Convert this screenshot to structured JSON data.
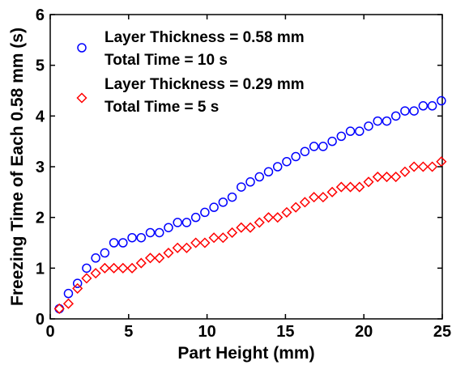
{
  "chart_data": {
    "type": "scatter",
    "title": "",
    "xlabel": "Part Height (mm)",
    "ylabel": "Freezing Time of Each 0.58 mm (s)",
    "xlim": [
      0,
      25
    ],
    "ylim": [
      0,
      6
    ],
    "xticks": [
      "0",
      "5",
      "10",
      "15",
      "20",
      "25"
    ],
    "yticks": [
      "0",
      "1",
      "2",
      "3",
      "4",
      "5",
      "6"
    ],
    "grid": false,
    "legend_position": "top-left",
    "series": [
      {
        "name": "Layer Thickness = 0.58 mm",
        "name2": "Total Time = 10 s",
        "marker": "circle",
        "color": "#0000ff",
        "x": [
          0.58,
          1.16,
          1.74,
          2.32,
          2.9,
          3.48,
          4.06,
          4.64,
          5.22,
          5.8,
          6.38,
          6.96,
          7.54,
          8.12,
          8.7,
          9.28,
          9.86,
          10.44,
          11.02,
          11.6,
          12.18,
          12.76,
          13.34,
          13.92,
          14.5,
          15.08,
          15.66,
          16.24,
          16.82,
          17.4,
          17.98,
          18.56,
          19.14,
          19.72,
          20.3,
          20.88,
          21.46,
          22.04,
          22.62,
          23.2,
          23.78,
          24.36,
          24.94
        ],
        "y": [
          0.2,
          0.5,
          0.7,
          1.0,
          1.2,
          1.3,
          1.5,
          1.5,
          1.6,
          1.6,
          1.7,
          1.7,
          1.8,
          1.9,
          1.9,
          2.0,
          2.1,
          2.2,
          2.3,
          2.4,
          2.6,
          2.7,
          2.8,
          2.9,
          3.0,
          3.1,
          3.2,
          3.3,
          3.4,
          3.4,
          3.5,
          3.6,
          3.7,
          3.7,
          3.8,
          3.9,
          3.9,
          4.0,
          4.1,
          4.1,
          4.2,
          4.2,
          4.3
        ]
      },
      {
        "name": "Layer Thickness = 0.29 mm",
        "name2": "Total Time = 5 s",
        "marker": "diamond",
        "color": "#ff0000",
        "x": [
          0.58,
          1.16,
          1.74,
          2.32,
          2.9,
          3.48,
          4.06,
          4.64,
          5.22,
          5.8,
          6.38,
          6.96,
          7.54,
          8.12,
          8.7,
          9.28,
          9.86,
          10.44,
          11.02,
          11.6,
          12.18,
          12.76,
          13.34,
          13.92,
          14.5,
          15.08,
          15.66,
          16.24,
          16.82,
          17.4,
          17.98,
          18.56,
          19.14,
          19.72,
          20.3,
          20.88,
          21.46,
          22.04,
          22.62,
          23.2,
          23.78,
          24.36,
          24.94
        ],
        "y": [
          0.2,
          0.3,
          0.6,
          0.8,
          0.9,
          1.0,
          1.0,
          1.0,
          1.0,
          1.1,
          1.2,
          1.2,
          1.3,
          1.4,
          1.4,
          1.5,
          1.5,
          1.6,
          1.6,
          1.7,
          1.8,
          1.8,
          1.9,
          2.0,
          2.0,
          2.1,
          2.2,
          2.3,
          2.4,
          2.4,
          2.5,
          2.6,
          2.6,
          2.6,
          2.7,
          2.8,
          2.8,
          2.8,
          2.9,
          3.0,
          3.0,
          3.0,
          3.1
        ]
      }
    ]
  }
}
